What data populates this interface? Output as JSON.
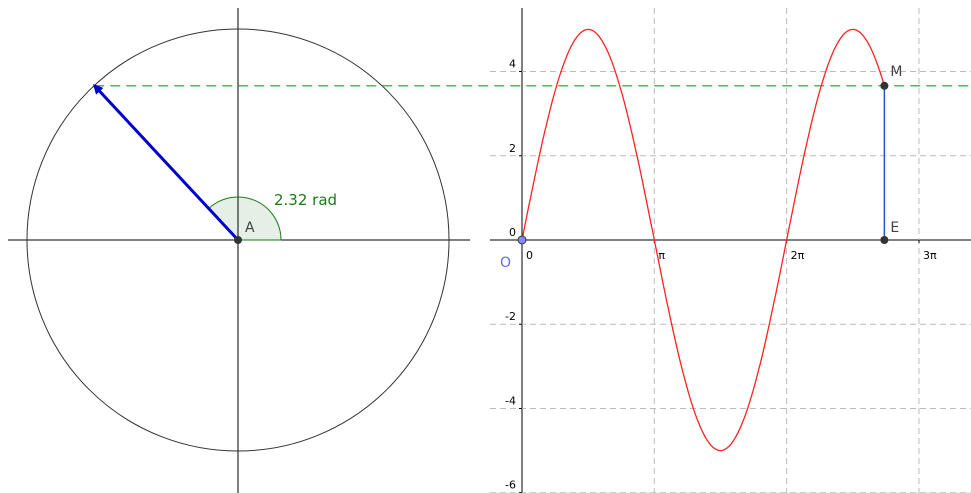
{
  "angle": 2.32,
  "angle_label": "2.32 rad",
  "center_label": "A",
  "graph": {
    "amplitude": 5,
    "origin_label": "O",
    "point_m_label": "M",
    "point_e_label": "E",
    "yticks": [
      -6,
      -4,
      -2,
      0,
      2,
      4
    ],
    "xticks": [
      {
        "value": 0,
        "label": "0"
      },
      {
        "value": 3.14159265,
        "label": "π"
      },
      {
        "value": 6.28318531,
        "label": "2π"
      },
      {
        "value": 9.42477796,
        "label": "3π"
      }
    ]
  }
}
